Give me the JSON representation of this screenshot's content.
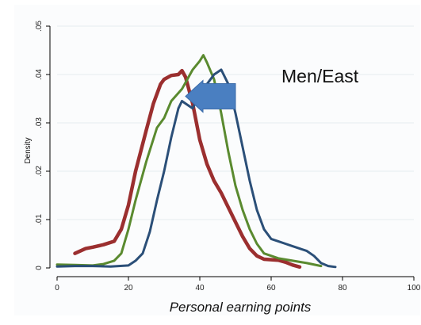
{
  "chart_data": {
    "type": "line",
    "title": "",
    "xlabel": "Personal earning points",
    "ylabel": "Density",
    "xlim": [
      0,
      100
    ],
    "ylim": [
      0,
      0.05
    ],
    "x_ticks": [
      "0",
      "20",
      "40",
      "60",
      "80",
      "100"
    ],
    "y_ticks": [
      "0",
      ".01",
      ".02",
      ".03",
      ".04",
      ".05"
    ],
    "grid": true,
    "annotation": "Men/East",
    "arrow": {
      "from": [
        50,
        0.0355
      ],
      "to": [
        36,
        0.0355
      ],
      "color": "#4a7fc1"
    },
    "series": [
      {
        "color": "#9b2f2f",
        "points": [
          [
            5,
            0.003
          ],
          [
            8,
            0.004
          ],
          [
            10,
            0.0043
          ],
          [
            13,
            0.0048
          ],
          [
            16,
            0.0055
          ],
          [
            18,
            0.008
          ],
          [
            20,
            0.013
          ],
          [
            22,
            0.02
          ],
          [
            25,
            0.0285
          ],
          [
            27,
            0.034
          ],
          [
            29,
            0.038
          ],
          [
            30,
            0.039
          ],
          [
            32,
            0.0398
          ],
          [
            34,
            0.04
          ],
          [
            35,
            0.0408
          ],
          [
            36,
            0.0395
          ],
          [
            38,
            0.034
          ],
          [
            40,
            0.0265
          ],
          [
            42,
            0.0215
          ],
          [
            44,
            0.018
          ],
          [
            46,
            0.0155
          ],
          [
            48,
            0.0125
          ],
          [
            50,
            0.0095
          ],
          [
            52,
            0.0065
          ],
          [
            54,
            0.004
          ],
          [
            56,
            0.0025
          ],
          [
            58,
            0.0018
          ],
          [
            60,
            0.0017
          ],
          [
            62,
            0.0016
          ],
          [
            64,
            0.0012
          ],
          [
            66,
            0.0006
          ],
          [
            68,
            0.0002
          ]
        ]
      },
      {
        "color": "#5a8a2f",
        "points": [
          [
            0,
            0.0007
          ],
          [
            5,
            0.0006
          ],
          [
            10,
            0.0005
          ],
          [
            13,
            0.0008
          ],
          [
            16,
            0.0015
          ],
          [
            18,
            0.003
          ],
          [
            20,
            0.008
          ],
          [
            22,
            0.014
          ],
          [
            25,
            0.022
          ],
          [
            28,
            0.029
          ],
          [
            30,
            0.031
          ],
          [
            32,
            0.0345
          ],
          [
            35,
            0.037
          ],
          [
            38,
            0.041
          ],
          [
            40,
            0.0428
          ],
          [
            41,
            0.044
          ],
          [
            42,
            0.0425
          ],
          [
            44,
            0.039
          ],
          [
            46,
            0.032
          ],
          [
            48,
            0.024
          ],
          [
            50,
            0.017
          ],
          [
            52,
            0.012
          ],
          [
            54,
            0.008
          ],
          [
            56,
            0.005
          ],
          [
            58,
            0.003
          ],
          [
            62,
            0.002
          ],
          [
            66,
            0.0015
          ],
          [
            70,
            0.001
          ],
          [
            74,
            0.0004
          ]
        ]
      },
      {
        "color": "#2b4f78",
        "points": [
          [
            0,
            0.0003
          ],
          [
            5,
            0.0004
          ],
          [
            10,
            0.0004
          ],
          [
            15,
            0.0003
          ],
          [
            20,
            0.0005
          ],
          [
            22,
            0.0015
          ],
          [
            24,
            0.003
          ],
          [
            26,
            0.0075
          ],
          [
            28,
            0.014
          ],
          [
            30,
            0.02
          ],
          [
            32,
            0.027
          ],
          [
            34,
            0.033
          ],
          [
            35,
            0.0345
          ],
          [
            36,
            0.034
          ],
          [
            38,
            0.033
          ],
          [
            40,
            0.036
          ],
          [
            42,
            0.038
          ],
          [
            44,
            0.04
          ],
          [
            45,
            0.0405
          ],
          [
            46,
            0.041
          ],
          [
            48,
            0.038
          ],
          [
            50,
            0.032
          ],
          [
            52,
            0.025
          ],
          [
            54,
            0.018
          ],
          [
            56,
            0.012
          ],
          [
            58,
            0.008
          ],
          [
            60,
            0.006
          ],
          [
            62,
            0.0055
          ],
          [
            64,
            0.005
          ],
          [
            66,
            0.0045
          ],
          [
            68,
            0.004
          ],
          [
            70,
            0.0035
          ],
          [
            72,
            0.0025
          ],
          [
            74,
            0.001
          ],
          [
            76,
            0.0004
          ],
          [
            78,
            0.0002
          ]
        ]
      }
    ]
  }
}
